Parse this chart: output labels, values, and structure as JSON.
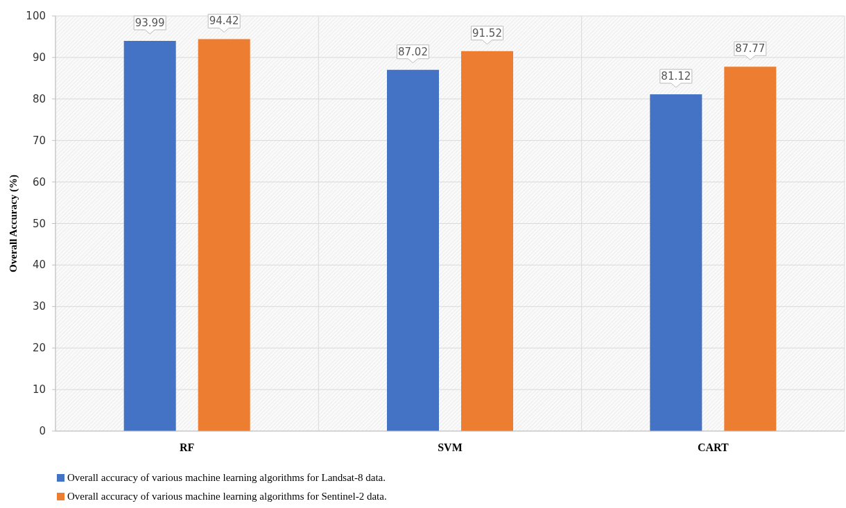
{
  "chart_data": {
    "type": "bar",
    "ylabel": "Overall Accuracy (%)",
    "categories": [
      "RF",
      "SVM",
      "CART"
    ],
    "series": [
      {
        "name": "Overall accuracy of various machine learning algorithms for Landsat-8 data.",
        "color": "#4472c4",
        "values": [
          93.99,
          87.02,
          81.12
        ]
      },
      {
        "name": "Overall accuracy of various machine learning algorithms for Sentinel-2 data.",
        "color": "#ed7d31",
        "values": [
          94.42,
          91.52,
          87.77
        ]
      }
    ],
    "ylim": [
      0,
      100
    ],
    "yticks": [
      0,
      10,
      20,
      30,
      40,
      50,
      60,
      70,
      80,
      90,
      100
    ],
    "grid": true,
    "legend": "bottom",
    "data_labels": true
  }
}
